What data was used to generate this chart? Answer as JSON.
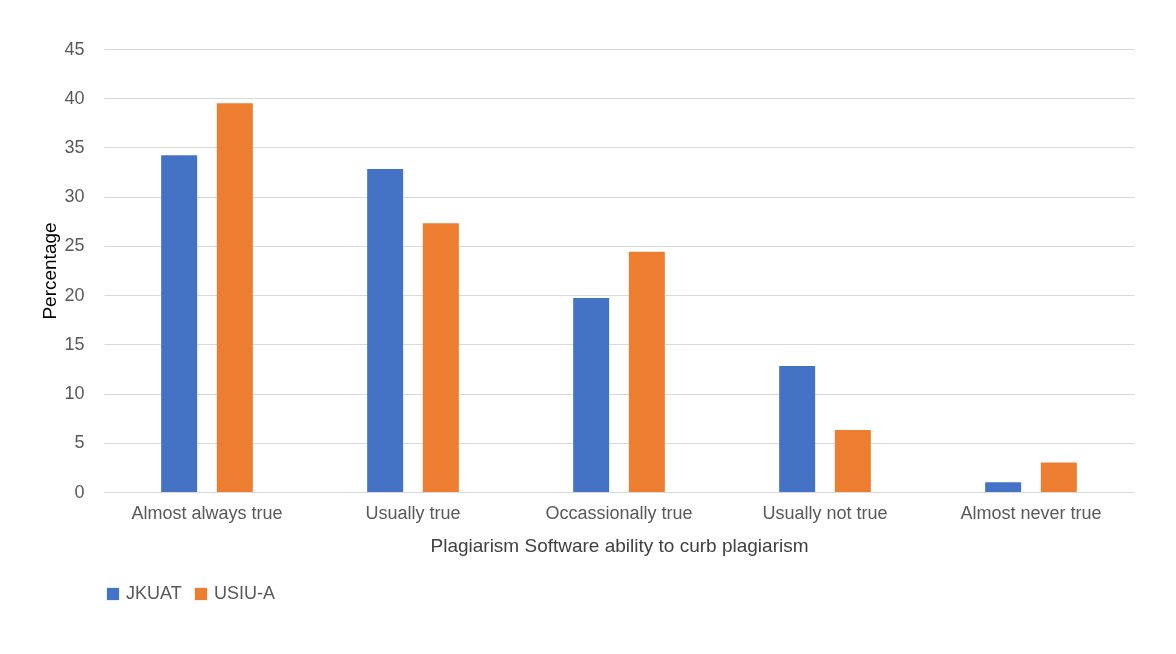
{
  "chart_data": {
    "type": "bar",
    "xlabel": "Plagiarism Software ability to curb plagiarism",
    "ylabel": "Percentage",
    "categories": [
      "Almost always true",
      "Usually true",
      "Occassionally true",
      "Usually not true",
      "Almost never true"
    ],
    "series": [
      {
        "name": "JKUAT",
        "color": "#4472c4",
        "values": [
          34.2,
          32.8,
          19.7,
          12.8,
          1.0
        ]
      },
      {
        "name": "USIU-A",
        "color": "#ed7d31",
        "values": [
          39.5,
          27.3,
          24.4,
          6.3,
          3.0
        ]
      }
    ],
    "ylim": [
      0,
      45
    ],
    "yticks": [
      0,
      5,
      10,
      15,
      20,
      25,
      30,
      35,
      40,
      45
    ],
    "grid": "y",
    "legend": "bottom"
  }
}
